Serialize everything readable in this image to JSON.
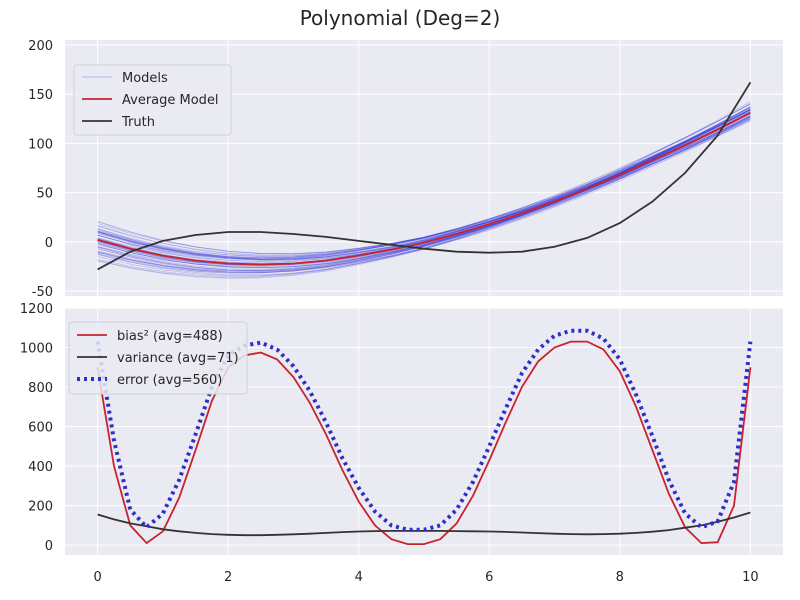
{
  "title": "Polynomial (Deg=2)",
  "colors": {
    "panel_bg": "#eaeaf2",
    "grid": "#ffffff",
    "models": "#3b3bd9",
    "average": "#c8232c",
    "truth": "#333333",
    "bias": "#c8232c",
    "variance": "#333333",
    "error": "#2e2ec8"
  },
  "chart_data": [
    {
      "type": "line",
      "panel": "top",
      "xlim": [
        -0.5,
        10.5
      ],
      "ylim": [
        -55,
        205
      ],
      "xticks": [
        0,
        2,
        4,
        6,
        8,
        10
      ],
      "yticks": [
        -50,
        0,
        50,
        100,
        150,
        200
      ],
      "legend": [
        "Models",
        "Average Model",
        "Truth"
      ],
      "legend_position": "top-left",
      "grid": true,
      "x": [
        0,
        0.5,
        1,
        1.5,
        2,
        2.5,
        3,
        3.5,
        4,
        4.5,
        5,
        5.5,
        6,
        6.5,
        7,
        7.5,
        8,
        8.5,
        9,
        9.5,
        10
      ],
      "series": [
        {
          "name": "Average Model",
          "values": [
            2,
            -7,
            -14,
            -19,
            -22,
            -23,
            -22,
            -19,
            -14,
            -8,
            -1,
            8,
            18,
            29,
            41,
            54,
            68,
            83,
            98,
            114,
            131
          ]
        },
        {
          "name": "Truth",
          "values": [
            -28,
            -10,
            1,
            7,
            10,
            10,
            8,
            5,
            1,
            -3,
            -7,
            -10,
            -11,
            -10,
            -5,
            4,
            19,
            41,
            70,
            108,
            162
          ]
        }
      ],
      "models_count": 60
    },
    {
      "type": "line",
      "panel": "bottom",
      "xlim": [
        -0.5,
        10.5
      ],
      "ylim": [
        -50,
        1200
      ],
      "xticks": [
        0,
        2,
        4,
        6,
        8,
        10
      ],
      "yticks": [
        0,
        200,
        400,
        600,
        800,
        1000,
        1200
      ],
      "legend": [
        "bias² (avg=488)",
        "variance (avg=71)",
        "error (avg=560)"
      ],
      "legend_position": "top-left",
      "grid": true,
      "x": [
        0,
        0.25,
        0.5,
        0.75,
        1,
        1.25,
        1.5,
        1.75,
        2,
        2.25,
        2.5,
        2.75,
        3,
        3.25,
        3.5,
        3.75,
        4,
        4.25,
        4.5,
        4.75,
        5,
        5.25,
        5.5,
        5.75,
        6,
        6.25,
        6.5,
        6.75,
        7,
        7.25,
        7.5,
        7.75,
        8,
        8.25,
        8.5,
        8.75,
        9,
        9.25,
        9.5,
        9.75,
        10
      ],
      "series": [
        {
          "name": "bias² (avg=488)",
          "values": [
            900,
            400,
            100,
            10,
            70,
            240,
            480,
            730,
            900,
            960,
            975,
            940,
            850,
            720,
            560,
            380,
            220,
            100,
            30,
            5,
            5,
            30,
            110,
            250,
            430,
            620,
            800,
            930,
            1000,
            1030,
            1030,
            990,
            880,
            700,
            480,
            260,
            90,
            10,
            15,
            200,
            900
          ]
        },
        {
          "name": "variance (avg=71)",
          "values": [
            155,
            130,
            110,
            95,
            80,
            70,
            62,
            56,
            52,
            50,
            50,
            52,
            55,
            58,
            62,
            66,
            69,
            71,
            72,
            72,
            72,
            72,
            71,
            70,
            69,
            67,
            64,
            61,
            58,
            56,
            55,
            56,
            58,
            62,
            68,
            76,
            88,
            100,
            118,
            140,
            165
          ]
        },
        {
          "name": "error (avg=560)",
          "values": [
            1030,
            530,
            180,
            90,
            160,
            330,
            560,
            800,
            960,
            1010,
            1025,
            990,
            905,
            780,
            620,
            440,
            290,
            170,
            100,
            78,
            78,
            100,
            180,
            320,
            500,
            690,
            870,
            990,
            1060,
            1085,
            1085,
            1045,
            940,
            760,
            550,
            330,
            160,
            90,
            120,
            320,
            1030
          ]
        }
      ]
    }
  ]
}
